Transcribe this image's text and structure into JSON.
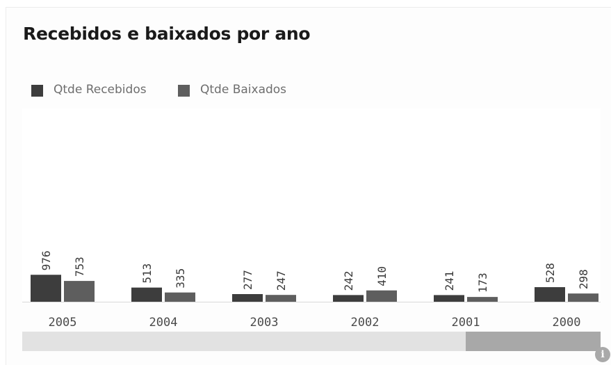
{
  "chart_data": {
    "type": "bar",
    "title": "Recebidos e baixados por ano",
    "categories": [
      "2005",
      "2004",
      "2003",
      "2002",
      "2001",
      "2000"
    ],
    "series": [
      {
        "name": "Qtde Recebidos",
        "values": [
          976,
          513,
          277,
          242,
          241,
          528
        ],
        "color": "#3d3d3d"
      },
      {
        "name": "Qtde Baixados",
        "values": [
          753,
          335,
          247,
          410,
          173,
          298
        ],
        "color": "#5e5e5e"
      }
    ],
    "xlabel": "",
    "ylabel": "",
    "legend_position": "top-left",
    "grid": false,
    "value_labels": "rotated",
    "ylim": [
      0,
      7000
    ]
  },
  "scrollbar": {
    "visible_fraction": 0.23,
    "position": "end"
  },
  "icons": {
    "info": "info-icon"
  },
  "info_glyph": "i"
}
